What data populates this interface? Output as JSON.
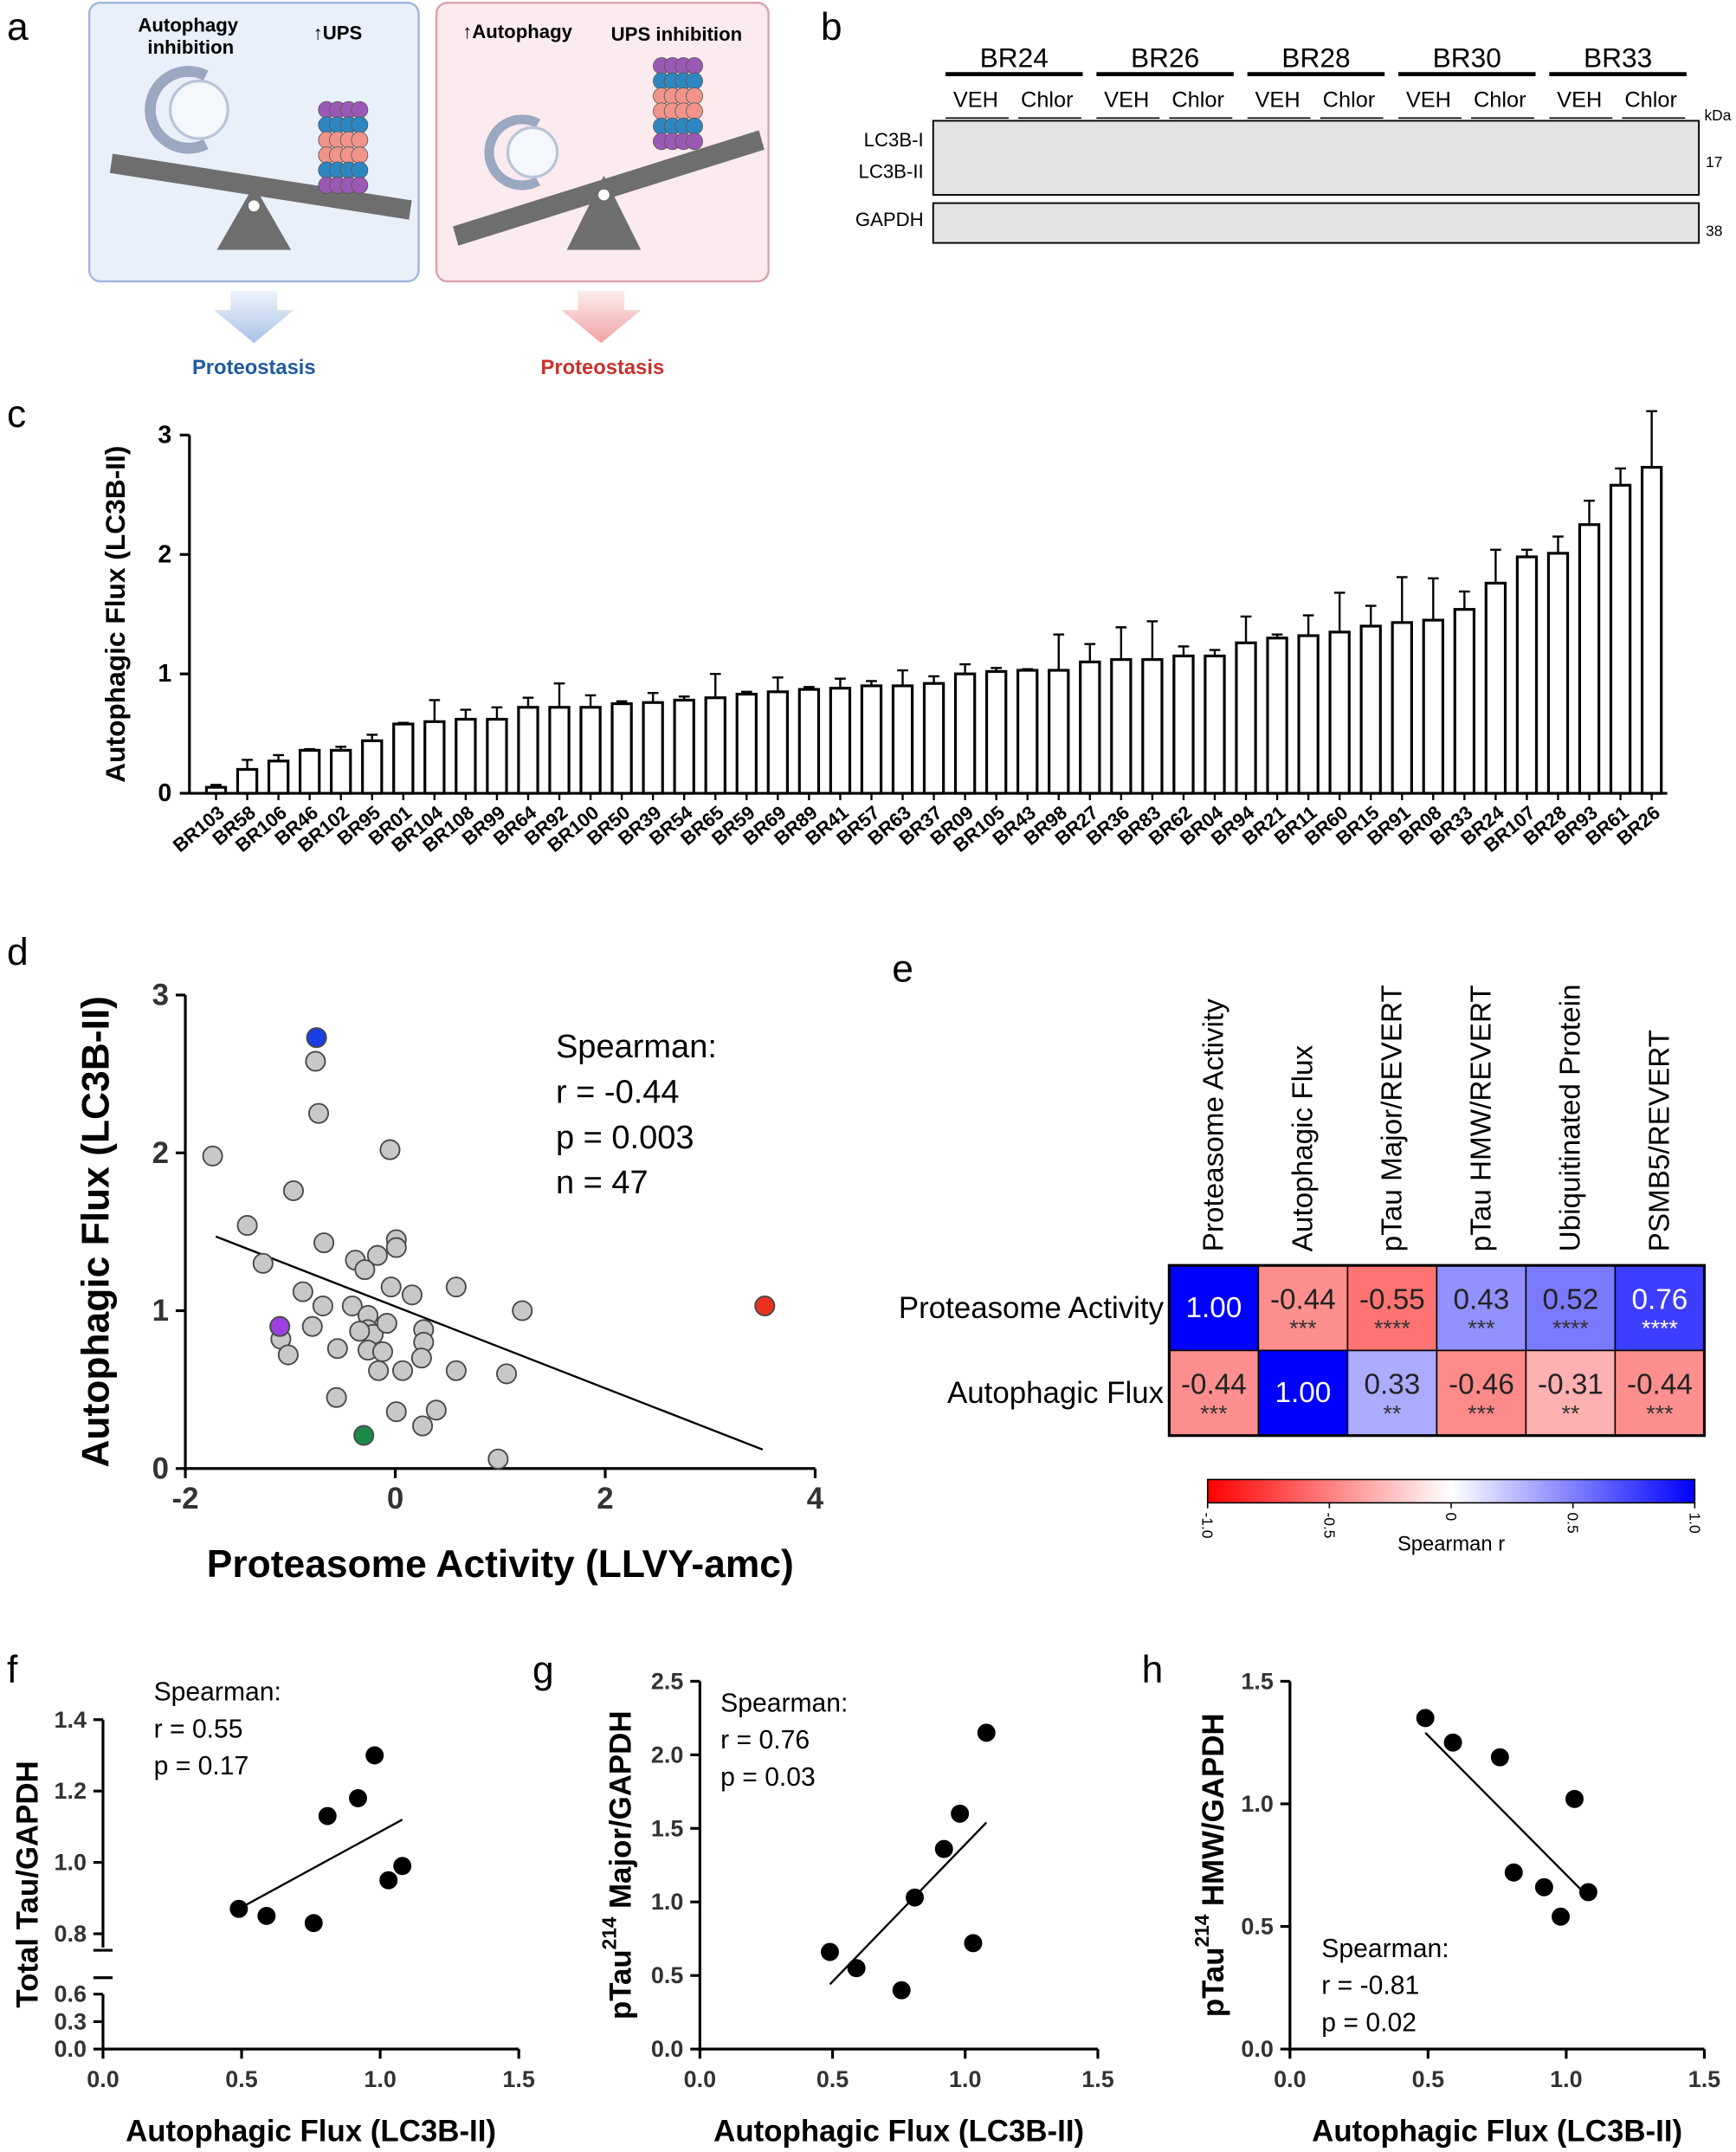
{
  "panel_labels": [
    "a",
    "b",
    "c",
    "d",
    "e",
    "f",
    "g",
    "h"
  ],
  "diagram": {
    "left": {
      "top_left": "Autophagy inhibition",
      "top_right": "↑UPS",
      "bottom": "Proteostasis"
    },
    "right": {
      "top_left": "↑Autophagy",
      "top_right": "UPS inhibition",
      "bottom": "Proteostasis"
    }
  },
  "blot": {
    "groups": [
      "BR24",
      "BR26",
      "BR28",
      "BR30",
      "BR33"
    ],
    "lanes": [
      "VEH",
      "Chlor"
    ],
    "rows": [
      "LC3B-I",
      "LC3B-II",
      "GAPDH"
    ],
    "unit": "kDa",
    "markers": [
      17,
      38
    ]
  },
  "chart_data": [
    {
      "type": "bar",
      "ylabel": "Autophagic Flux (LC3B-II)",
      "categories": [
        "BR103",
        "BR58",
        "BR106",
        "BR46",
        "BR102",
        "BR95",
        "BR01",
        "BR104",
        "BR108",
        "BR99",
        "BR64",
        "BR92",
        "BR100",
        "BR50",
        "BR39",
        "BR54",
        "BR65",
        "BR59",
        "BR69",
        "BR89",
        "BR41",
        "BR57",
        "BR63",
        "BR37",
        "BR09",
        "BR105",
        "BR43",
        "BR98",
        "BR27",
        "BR36",
        "BR83",
        "BR62",
        "BR04",
        "BR94",
        "BR21",
        "BR11",
        "BR60",
        "BR15",
        "BR91",
        "BR08",
        "BR33",
        "BR24",
        "BR107",
        "BR28",
        "BR93",
        "BR61",
        "BR26"
      ],
      "values": [
        0.05,
        0.2,
        0.27,
        0.36,
        0.36,
        0.44,
        0.58,
        0.6,
        0.62,
        0.62,
        0.72,
        0.72,
        0.72,
        0.75,
        0.76,
        0.78,
        0.8,
        0.83,
        0.85,
        0.87,
        0.88,
        0.9,
        0.9,
        0.92,
        1.0,
        1.02,
        1.03,
        1.03,
        1.1,
        1.12,
        1.12,
        1.15,
        1.15,
        1.26,
        1.3,
        1.32,
        1.35,
        1.4,
        1.43,
        1.45,
        1.54,
        1.76,
        1.98,
        2.01,
        2.25,
        2.58,
        2.73
      ],
      "errors": [
        0.02,
        0.08,
        0.05,
        0.01,
        0.03,
        0.05,
        0.01,
        0.18,
        0.08,
        0.1,
        0.08,
        0.2,
        0.1,
        0.02,
        0.08,
        0.03,
        0.2,
        0.02,
        0.12,
        0.02,
        0.08,
        0.04,
        0.13,
        0.06,
        0.08,
        0.03,
        0.01,
        0.3,
        0.15,
        0.27,
        0.32,
        0.08,
        0.05,
        0.22,
        0.03,
        0.17,
        0.33,
        0.17,
        0.38,
        0.35,
        0.15,
        0.28,
        0.06,
        0.14,
        0.2,
        0.14,
        0.47
      ],
      "color": "#ffffff",
      "edgecolor": "#000000",
      "ylim": [
        0,
        3
      ],
      "yticks": [
        0,
        1,
        2,
        3
      ]
    },
    {
      "type": "scatter",
      "xlabel": "Proteasome Activity (LLVY-amc)",
      "ylabel": "Autophagic Flux (LC3B-II)",
      "xlim": [
        -2,
        4
      ],
      "xticks": [
        -2,
        0,
        2,
        4
      ],
      "ylim": [
        0,
        3
      ],
      "yticks": [
        0,
        1,
        2,
        3
      ],
      "series": [
        {
          "color": "#c8c8c8",
          "x": [
            -0.76,
            -0.73,
            -1.74,
            -0.05,
            -0.97,
            -1.41,
            -0.68,
            0.01,
            0.01,
            -1.26,
            -0.17,
            -0.38,
            -0.29,
            -0.88,
            0.58,
            -0.04,
            0.16,
            1.21,
            -0.69,
            -0.41,
            -0.26,
            -0.79,
            -0.26,
            -0.21,
            -0.34,
            -0.08,
            0.27,
            0.27,
            -1.09,
            -1.02,
            -0.55,
            -0.26,
            -0.12,
            0.25,
            0.58,
            1.06,
            0.07,
            -0.16,
            -0.56,
            0.39,
            0.01,
            0.26,
            0.98
          ],
          "y": [
            2.58,
            2.25,
            1.98,
            2.02,
            1.76,
            1.54,
            1.43,
            1.45,
            1.4,
            1.3,
            1.35,
            1.32,
            1.26,
            1.12,
            1.15,
            1.15,
            1.1,
            1.0,
            1.03,
            1.03,
            0.97,
            0.9,
            0.88,
            0.85,
            0.87,
            0.92,
            0.88,
            0.8,
            0.82,
            0.72,
            0.76,
            0.75,
            0.74,
            0.7,
            0.62,
            0.6,
            0.62,
            0.62,
            0.45,
            0.37,
            0.36,
            0.27,
            0.06
          ]
        },
        {
          "color": "#1a3fe6",
          "x": [
            -0.75
          ],
          "y": [
            2.73
          ]
        },
        {
          "color": "#e8321e",
          "x": [
            3.52
          ],
          "y": [
            1.03
          ]
        },
        {
          "color": "#9b3fe0",
          "x": [
            -1.1
          ],
          "y": [
            0.9
          ]
        },
        {
          "color": "#1a8a4a",
          "x": [
            -0.3
          ],
          "y": [
            0.21
          ]
        }
      ],
      "trendline": {
        "x": [
          -1.71,
          3.5
        ],
        "y": [
          1.47,
          0.12
        ]
      },
      "annotation": [
        "Spearman:",
        "r = -0.44",
        "p = 0.003",
        "n = 47"
      ]
    },
    {
      "type": "heatmap",
      "columns": [
        "Proteasome Activity",
        "Autophagic Flux",
        "pTau Major/REVERT",
        "pTau HMW/REVERT",
        "Ubiquitinated Protein",
        "PSMB5/REVERT"
      ],
      "rows": [
        "Proteasome Activity",
        "Autophagic Flux"
      ],
      "values": [
        [
          1.0,
          -0.44,
          -0.55,
          0.43,
          0.52,
          0.76
        ],
        [
          -0.44,
          1.0,
          0.33,
          -0.46,
          -0.31,
          -0.44
        ]
      ],
      "value_labels": [
        [
          "1.00",
          "-0.44",
          "-0.55",
          "0.43",
          "0.52",
          "0.76"
        ],
        [
          "-0.44",
          "1.00",
          "0.33",
          "-0.46",
          "-0.31",
          "-0.44"
        ]
      ],
      "significance": [
        [
          null,
          "***",
          "****",
          "***",
          "****",
          "****"
        ],
        [
          "***",
          null,
          "**",
          "***",
          "**",
          "***"
        ]
      ],
      "colorscale": [
        "#ff0000",
        "#ffffff",
        "#0000ff"
      ],
      "zlim": [
        -1,
        1
      ],
      "zticks": [
        {
          "value": -1,
          "label": "-1.0"
        },
        -0.5,
        0,
        0.5,
        {
          "value": 1,
          "label": "1.0"
        }
      ],
      "colorbar_label": "Spearman r"
    },
    {
      "type": "scatter",
      "xlabel": "Autophagic Flux (LC3B-II)",
      "ylabel": "Total Tau/GAPDH",
      "xlim": [
        0,
        1.5
      ],
      "xticks": [
        {
          "value": 0,
          "label": "0.0"
        },
        0.5,
        {
          "value": 1,
          "label": "1.0"
        },
        1.5
      ],
      "ysegments": [
        {
          "ylim": [
            0,
            0.6
          ],
          "yticks": [
            {
              "value": 0,
              "label": "0.0"
            },
            0.3,
            0.6
          ]
        },
        {
          "ylim": [
            0.8,
            1.4
          ],
          "yticks": [
            0.8,
            {
              "value": 1,
              "label": "1.0"
            },
            1.2,
            1.4
          ]
        }
      ],
      "series": [
        {
          "color": "#000000",
          "x": [
            0.49,
            0.59,
            0.76,
            0.81,
            0.92,
            0.98,
            1.03,
            1.08
          ],
          "y": [
            0.87,
            0.85,
            0.83,
            1.13,
            1.18,
            1.3,
            0.95,
            0.99
          ]
        }
      ],
      "trendline": {
        "x": [
          0.49,
          1.08
        ],
        "y": [
          0.87,
          1.12
        ]
      },
      "annotation": [
        "Spearman:",
        "r = 0.55",
        "p = 0.17"
      ]
    },
    {
      "type": "scatter",
      "xlabel": "Autophagic Flux (LC3B-II)",
      "ylabel": [
        "pTau",
        "214",
        "Major/GAPDH"
      ],
      "xlim": [
        0,
        1.5
      ],
      "xticks": [
        {
          "value": 0,
          "label": "0.0"
        },
        0.5,
        {
          "value": 1,
          "label": "1.0"
        },
        1.5
      ],
      "ylim": [
        0,
        2.5
      ],
      "yticks": [
        {
          "value": 0,
          "label": "0.0"
        },
        0.5,
        {
          "value": 1,
          "label": "1.0"
        },
        1.5,
        {
          "value": 2,
          "label": "2.0"
        },
        2.5
      ],
      "series": [
        {
          "color": "#000000",
          "x": [
            0.49,
            0.59,
            0.76,
            0.81,
            0.92,
            0.98,
            1.03,
            1.08
          ],
          "y": [
            0.66,
            0.55,
            0.4,
            1.03,
            1.36,
            1.6,
            0.72,
            2.15
          ]
        }
      ],
      "trendline": {
        "x": [
          0.49,
          1.08
        ],
        "y": [
          0.44,
          1.54
        ]
      },
      "annotation": [
        "Spearman:",
        "r = 0.76",
        "p = 0.03"
      ]
    },
    {
      "type": "scatter",
      "xlabel": "Autophagic Flux (LC3B-II)",
      "ylabel": [
        "pTau",
        "214",
        "HMW/GAPDH"
      ],
      "xlim": [
        0,
        1.5
      ],
      "xticks": [
        {
          "value": 0,
          "label": "0.0"
        },
        0.5,
        {
          "value": 1,
          "label": "1.0"
        },
        1.5
      ],
      "ylim": [
        0,
        1.5
      ],
      "yticks": [
        {
          "value": 0,
          "label": "0.0"
        },
        0.5,
        {
          "value": 1,
          "label": "1.0"
        },
        1.5
      ],
      "series": [
        {
          "color": "#000000",
          "x": [
            0.49,
            0.59,
            0.76,
            0.81,
            0.92,
            0.98,
            1.03,
            1.08
          ],
          "y": [
            1.35,
            1.25,
            1.19,
            0.72,
            0.66,
            0.54,
            1.02,
            0.64
          ]
        }
      ],
      "trendline": {
        "x": [
          0.49,
          1.08
        ],
        "y": [
          1.29,
          0.62
        ]
      },
      "annotation": [
        "Spearman:",
        "r = -0.81",
        "p = 0.02"
      ]
    }
  ]
}
